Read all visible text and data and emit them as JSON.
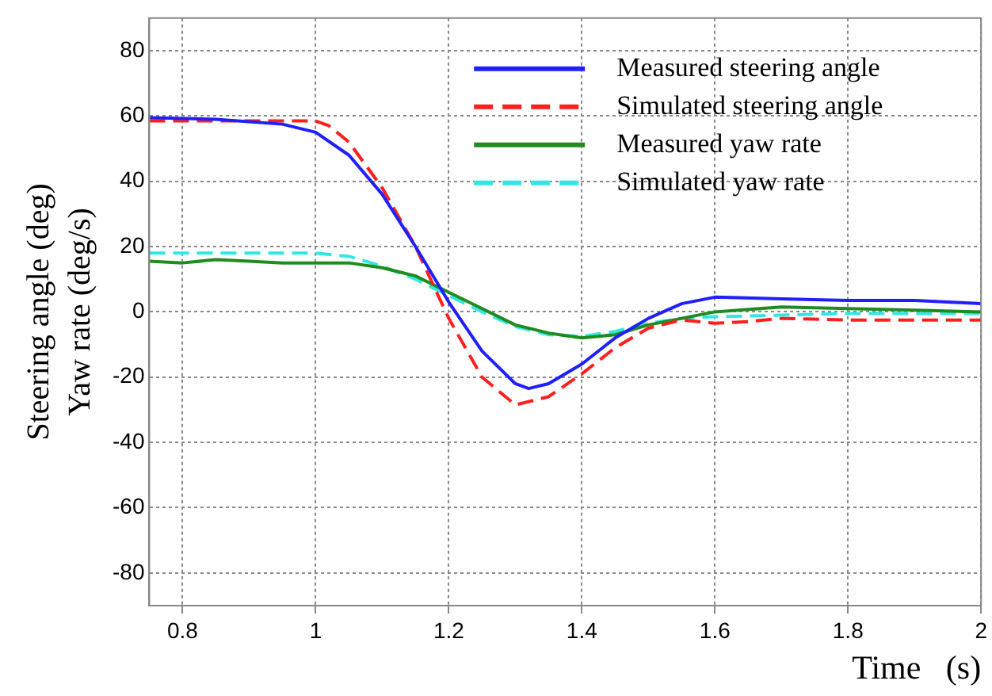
{
  "chart_data": {
    "type": "line",
    "xlabel": "Time   (s)",
    "ylabel": "Steering angle (deg)\nYaw rate (deg/s)",
    "xlim": [
      0.75,
      2
    ],
    "xticks": [
      0.8,
      1,
      1.2,
      1.4,
      1.6,
      1.8,
      2
    ],
    "ylim": [
      -90,
      90
    ],
    "yticks": [
      -80,
      -60,
      -40,
      -20,
      0,
      20,
      40,
      60,
      80
    ],
    "grid": true,
    "legend": "top right",
    "marker": "none",
    "series": [
      {
        "name": "Measured steering angle",
        "color": "#1f1fff",
        "line_style": "solid",
        "x": [
          0.75,
          0.85,
          0.95,
          1.0,
          1.05,
          1.1,
          1.15,
          1.2,
          1.25,
          1.3,
          1.32,
          1.35,
          1.4,
          1.45,
          1.5,
          1.55,
          1.6,
          1.7,
          1.8,
          1.9,
          2.0
        ],
        "values": [
          59.5,
          59,
          57.5,
          55,
          48,
          36,
          20,
          3,
          -12,
          -22,
          -23.5,
          -22,
          -16,
          -8,
          -2,
          2.5,
          4.5,
          4,
          3.5,
          3.5,
          2.5
        ]
      },
      {
        "name": "Simulated steering angle",
        "color": "#ff1f1f",
        "line_style": "dashed",
        "x": [
          0.75,
          1.0,
          1.02,
          1.05,
          1.1,
          1.15,
          1.2,
          1.25,
          1.3,
          1.35,
          1.4,
          1.45,
          1.5,
          1.55,
          1.6,
          1.65,
          1.7,
          1.8,
          1.9,
          2.0
        ],
        "values": [
          58.5,
          58.5,
          57,
          52,
          38,
          20,
          -2,
          -20,
          -28.5,
          -26,
          -19,
          -11,
          -5,
          -2.5,
          -3.5,
          -3,
          -2,
          -2.5,
          -2.5,
          -2.5
        ]
      },
      {
        "name": "Measured yaw rate",
        "color": "#1f8c1f",
        "line_style": "solid",
        "x": [
          0.75,
          0.8,
          0.85,
          0.9,
          0.95,
          1.0,
          1.05,
          1.1,
          1.15,
          1.2,
          1.25,
          1.3,
          1.35,
          1.4,
          1.45,
          1.5,
          1.55,
          1.6,
          1.7,
          1.8,
          1.9,
          2.0
        ],
        "values": [
          15.5,
          15,
          16,
          15.5,
          15,
          15,
          15,
          13.5,
          11,
          6,
          1,
          -4,
          -6.5,
          -8,
          -7,
          -4,
          -2,
          0,
          1.5,
          1,
          0.5,
          0
        ]
      },
      {
        "name": "Simulated yaw rate",
        "color": "#33e6e6",
        "line_style": "dashed",
        "x": [
          0.75,
          1.0,
          1.05,
          1.1,
          1.15,
          1.2,
          1.25,
          1.3,
          1.35,
          1.4,
          1.45,
          1.5,
          1.55,
          1.6,
          1.7,
          1.8,
          2.0
        ],
        "values": [
          18,
          18,
          17,
          14,
          10,
          5,
          0,
          -4.5,
          -7,
          -7.5,
          -6,
          -3.5,
          -2,
          -1.5,
          -1,
          -0.5,
          -0.5
        ]
      }
    ]
  }
}
